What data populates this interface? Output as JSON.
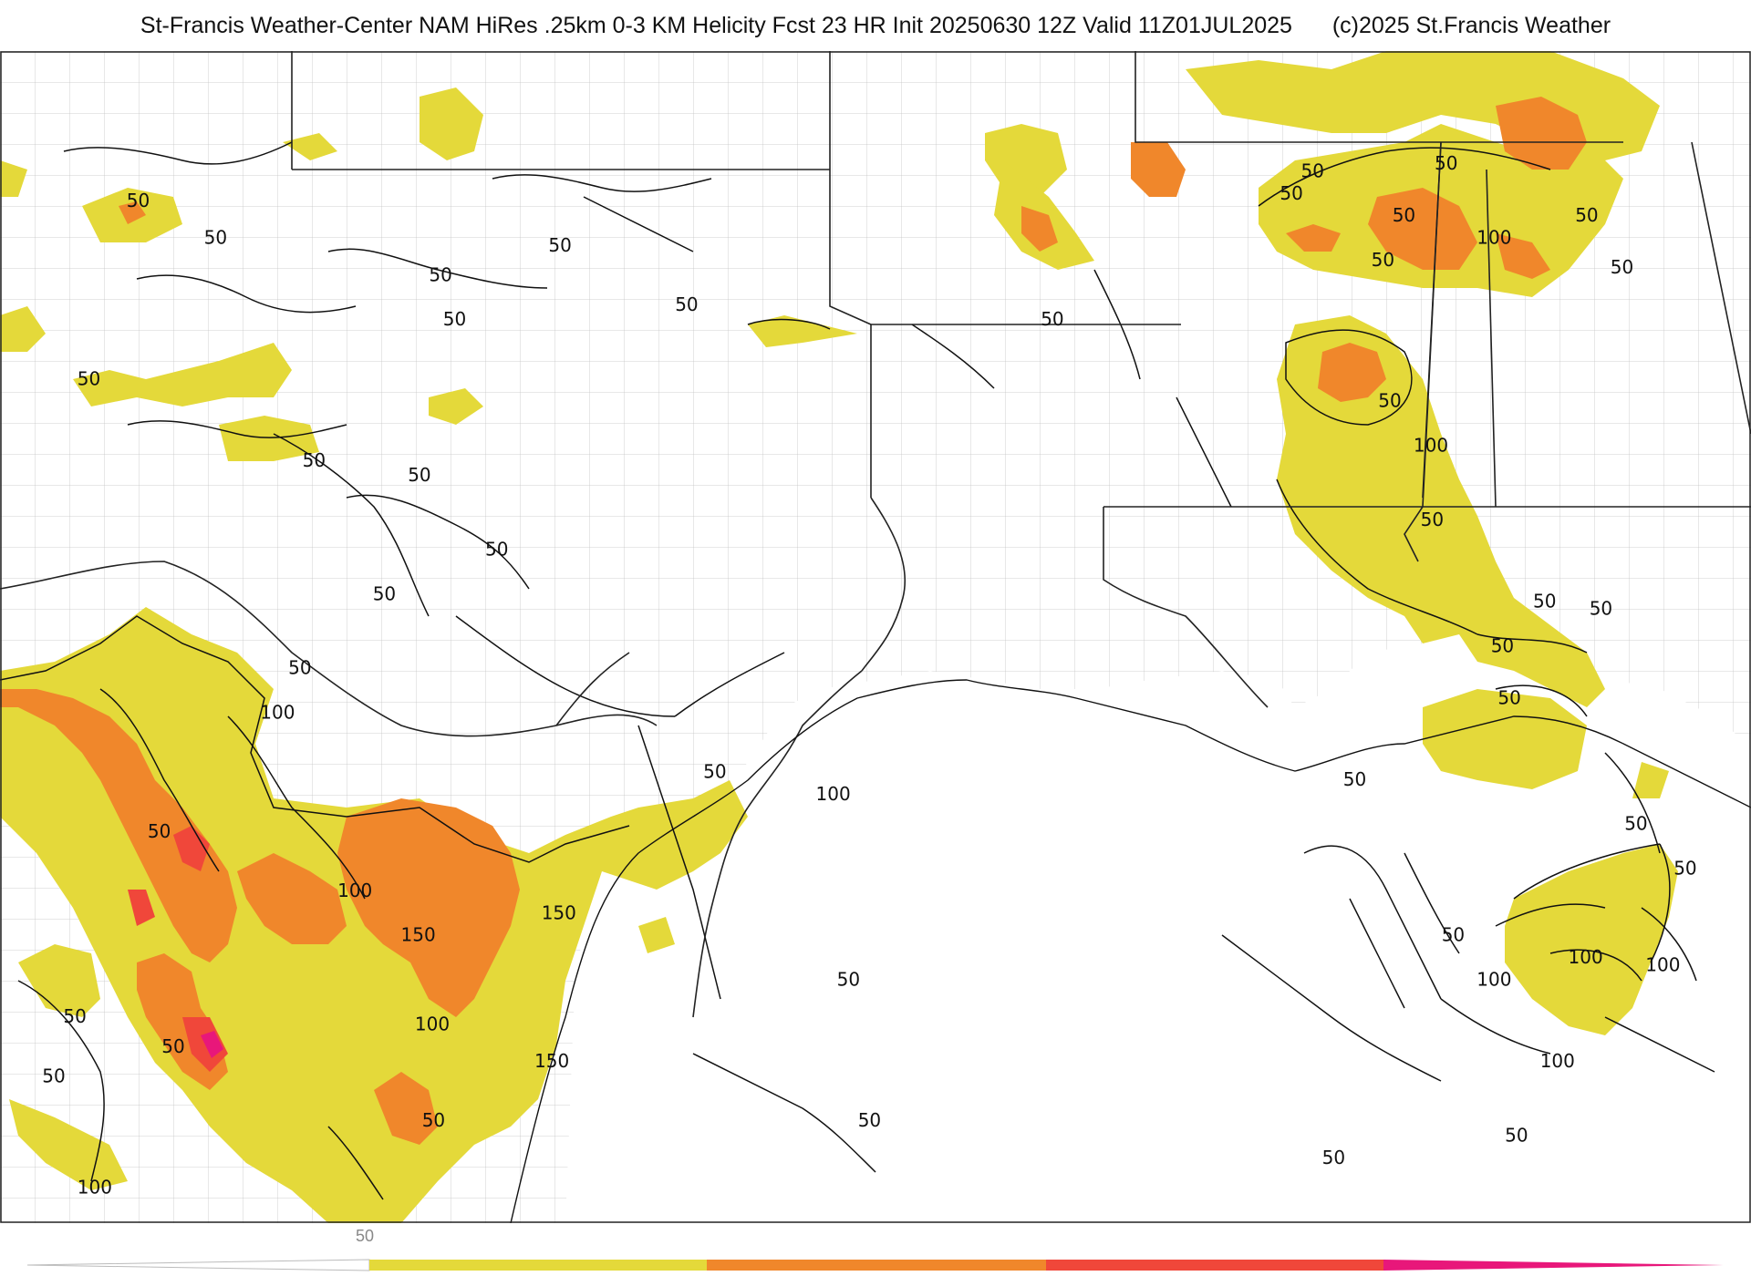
{
  "header": {
    "title": "St-Francis Weather-Center NAM HiRes .25km 0-3 KM Helicity Fcst 23 HR Init 20250630 12Z  Valid 11Z01JUL2025",
    "copyright": "(c)2025 St.Francis Weather"
  },
  "colors": {
    "band_50_100": "#e4d93a",
    "band_100_150": "#f0872b",
    "band_150_200": "#f0473a",
    "band_200_plus": "#e8177a",
    "contour": "#111111",
    "state_border": "#222222",
    "county_border": "#c4c4c4",
    "map_frame": "#222222"
  },
  "contour_labels": [
    {
      "text": "50",
      "lon": -105.3,
      "lat": 36.3
    },
    {
      "text": "50",
      "lon": -104.2,
      "lat": 35.8
    },
    {
      "text": "50",
      "lon": -101.0,
      "lat": 35.3
    },
    {
      "text": "50",
      "lon": -99.3,
      "lat": 35.7
    },
    {
      "text": "50",
      "lon": -97.5,
      "lat": 34.9
    },
    {
      "text": "50",
      "lon": -100.8,
      "lat": 34.7
    },
    {
      "text": "50",
      "lon": -106.0,
      "lat": 33.9
    },
    {
      "text": "50",
      "lon": -102.8,
      "lat": 32.8
    },
    {
      "text": "50",
      "lon": -101.3,
      "lat": 32.6
    },
    {
      "text": "50",
      "lon": -100.2,
      "lat": 31.6
    },
    {
      "text": "50",
      "lon": -101.8,
      "lat": 31.0
    },
    {
      "text": "50",
      "lon": -103.0,
      "lat": 30.0
    },
    {
      "text": "50",
      "lon": -97.1,
      "lat": 28.6
    },
    {
      "text": "50",
      "lon": -105.0,
      "lat": 27.8
    },
    {
      "text": "50",
      "lon": -106.2,
      "lat": 25.3
    },
    {
      "text": "50",
      "lon": -104.8,
      "lat": 24.9
    },
    {
      "text": "50",
      "lon": -101.1,
      "lat": 23.9
    },
    {
      "text": "50",
      "lon": -106.5,
      "lat": 24.5
    },
    {
      "text": "50",
      "lon": -95.2,
      "lat": 25.8
    },
    {
      "text": "50",
      "lon": -94.9,
      "lat": 23.9
    },
    {
      "text": "50",
      "lon": -92.3,
      "lat": 34.7
    },
    {
      "text": "50",
      "lon": -87.6,
      "lat": 35.5
    },
    {
      "text": "50",
      "lon": -88.9,
      "lat": 36.4
    },
    {
      "text": "50",
      "lon": -88.6,
      "lat": 36.7
    },
    {
      "text": "50",
      "lon": -87.3,
      "lat": 36.1
    },
    {
      "text": "50",
      "lon": -86.7,
      "lat": 36.8
    },
    {
      "text": "50",
      "lon": -87.5,
      "lat": 33.6
    },
    {
      "text": "50",
      "lon": -84.7,
      "lat": 36.1
    },
    {
      "text": "50",
      "lon": -84.2,
      "lat": 35.4
    },
    {
      "text": "50",
      "lon": -86.9,
      "lat": 32.0
    },
    {
      "text": "50",
      "lon": -85.3,
      "lat": 30.9
    },
    {
      "text": "50",
      "lon": -84.5,
      "lat": 30.8
    },
    {
      "text": "50",
      "lon": -85.9,
      "lat": 30.3
    },
    {
      "text": "50",
      "lon": -85.8,
      "lat": 29.6
    },
    {
      "text": "50",
      "lon": -88.0,
      "lat": 28.5
    },
    {
      "text": "50",
      "lon": -84.0,
      "lat": 27.9
    },
    {
      "text": "50",
      "lon": -83.3,
      "lat": 27.3
    },
    {
      "text": "50",
      "lon": -86.6,
      "lat": 26.4
    },
    {
      "text": "50",
      "lon": -85.7,
      "lat": 23.7
    },
    {
      "text": "50",
      "lon": -88.3,
      "lat": 23.4
    },
    {
      "text": "100",
      "lon": -103.4,
      "lat": 29.4
    },
    {
      "text": "100",
      "lon": -102.3,
      "lat": 27.0
    },
    {
      "text": "100",
      "lon": -95.5,
      "lat": 28.3
    },
    {
      "text": "100",
      "lon": -101.2,
      "lat": 25.2
    },
    {
      "text": "100",
      "lon": -106.0,
      "lat": 23.0
    },
    {
      "text": "100",
      "lon": -86.1,
      "lat": 35.8
    },
    {
      "text": "100",
      "lon": -87.0,
      "lat": 33.0
    },
    {
      "text": "100",
      "lon": -84.8,
      "lat": 26.1
    },
    {
      "text": "100",
      "lon": -86.1,
      "lat": 25.8
    },
    {
      "text": "100",
      "lon": -83.7,
      "lat": 26.0
    },
    {
      "text": "100",
      "lon": -85.2,
      "lat": 24.7
    },
    {
      "text": "150",
      "lon": -99.4,
      "lat": 26.7
    },
    {
      "text": "150",
      "lon": -101.4,
      "lat": 26.4
    },
    {
      "text": "150",
      "lon": -99.5,
      "lat": 24.7
    }
  ],
  "legend": {
    "label_50": "50"
  }
}
